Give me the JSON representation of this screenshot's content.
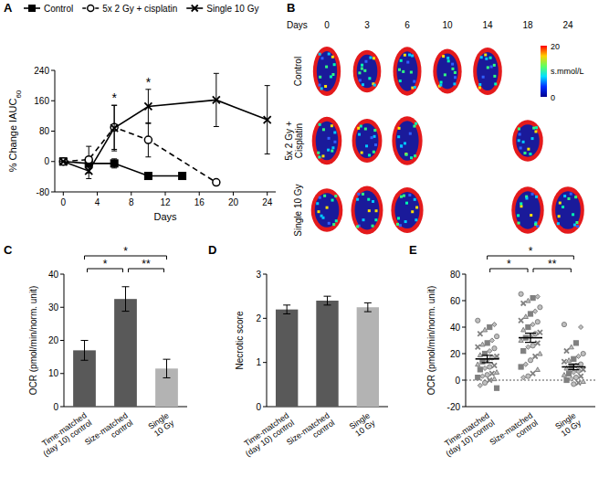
{
  "chart_data": [
    {
      "panel": "A",
      "type": "line",
      "x_label": "Days",
      "y_label": "% Change IAUC60",
      "xlim": [
        -1,
        25
      ],
      "xticks": [
        0,
        4,
        8,
        12,
        16,
        20,
        24
      ],
      "ylim": [
        -80,
        240
      ],
      "yticks": [
        -80,
        0,
        80,
        160,
        240
      ],
      "legend": "top",
      "series": [
        {
          "name": "Control",
          "color": "#000000",
          "marker": "square",
          "line_style": "solid",
          "x": [
            0,
            3,
            6,
            10,
            14
          ],
          "values": [
            0,
            -5,
            -5,
            -38,
            -38
          ],
          "errors": [
            0,
            10,
            12,
            6,
            4
          ]
        },
        {
          "name": "5x 2 Gy + cisplatin",
          "color": "#000000",
          "marker": "open_circle",
          "line_style": "dashed",
          "x": [
            0,
            3,
            6,
            10,
            18
          ],
          "values": [
            0,
            5,
            90,
            57,
            -55
          ],
          "errors": [
            0,
            35,
            58,
            45,
            6
          ]
        },
        {
          "name": "Single 10 Gy",
          "color": "#000000",
          "marker": "x",
          "line_style": "solid",
          "x": [
            0,
            3,
            6,
            10,
            18,
            24
          ],
          "values": [
            0,
            -25,
            88,
            145,
            162,
            110
          ],
          "errors": [
            0,
            20,
            60,
            45,
            70,
            90
          ]
        }
      ],
      "annotations": [
        {
          "x": 6,
          "text": "*"
        },
        {
          "x": 10,
          "text": "*"
        }
      ]
    },
    {
      "panel": "B",
      "type": "image_grid",
      "x_label": "Days",
      "columns": [
        0,
        3,
        6,
        10,
        14,
        18,
        24
      ],
      "rows": [
        {
          "name": "Control",
          "days": [
            0,
            3,
            6,
            10,
            14
          ]
        },
        {
          "name": "5x 2 Gy + Cisplatin",
          "days": [
            0,
            3,
            6,
            18
          ]
        },
        {
          "name": "Single 10 Gy",
          "days": [
            0,
            3,
            6,
            18,
            24
          ]
        }
      ],
      "colorbar": {
        "range": [
          0,
          20
        ],
        "ticks": [
          0,
          20
        ],
        "label": "s.mmol/L"
      }
    },
    {
      "panel": "C",
      "type": "bar",
      "y_label": "OCR (pmol/min/norm. unit)",
      "categories": [
        "Time-matched (day 10) control",
        "Size-matched control",
        "Single 10 Gy"
      ],
      "values": [
        17,
        32.5,
        11.5
      ],
      "errors": [
        3,
        3.7,
        2.8
      ],
      "colors": [
        "#595959",
        "#595959",
        "#b3b3b3"
      ],
      "ylim": [
        0,
        40
      ],
      "yticks": [
        0,
        10,
        20,
        30,
        40
      ],
      "annotations": [
        {
          "from": 0,
          "to": 2,
          "text": "*"
        },
        {
          "from": 0,
          "to": 1,
          "text": "*"
        },
        {
          "from": 1,
          "to": 2,
          "text": "**"
        }
      ]
    },
    {
      "panel": "D",
      "type": "bar",
      "y_label": "Necrotic score",
      "categories": [
        "Time-matched (day 10) control",
        "Size-matched control",
        "Single 10 Gy"
      ],
      "values": [
        2.2,
        2.4,
        2.25
      ],
      "errors": [
        0.1,
        0.1,
        0.1
      ],
      "colors": [
        "#595959",
        "#595959",
        "#b3b3b3"
      ],
      "ylim": [
        0,
        3
      ],
      "yticks": [
        0,
        1,
        2,
        3
      ]
    },
    {
      "panel": "E",
      "type": "strip",
      "y_label": "OCR (pmol/min/norm. unit)",
      "categories": [
        "Time-matched (day 10) control",
        "Size-matched control",
        "Single 10 Gy"
      ],
      "points": [
        [
          45,
          42,
          40,
          38,
          35,
          33,
          30,
          28,
          27,
          25,
          24,
          22,
          20,
          19,
          18,
          17,
          15,
          14,
          12,
          11,
          10,
          9,
          8,
          6,
          5,
          4,
          3,
          2,
          1,
          0,
          -2,
          -4,
          -6
        ],
        [
          65,
          63,
          62,
          60,
          58,
          55,
          52,
          50,
          48,
          45,
          44,
          42,
          40,
          38,
          36,
          35,
          33,
          32,
          30,
          28,
          26,
          25,
          22,
          20,
          18,
          15,
          12,
          10,
          8,
          5,
          3,
          2
        ],
        [
          42,
          40,
          28,
          25,
          22,
          20,
          18,
          16,
          15,
          14,
          12,
          11,
          10,
          9,
          8,
          7,
          6,
          5,
          4,
          3,
          2,
          1,
          0,
          -1,
          -2,
          -3
        ]
      ],
      "values": [
        16,
        32,
        10
      ],
      "errors": [
        2.8,
        3.5,
        2.2
      ],
      "color": "#808080",
      "reference_line": 0,
      "ylim": [
        -20,
        80
      ],
      "yticks": [
        -20,
        0,
        20,
        40,
        60,
        80
      ],
      "annotations": [
        {
          "from": 0,
          "to": 2,
          "text": "*"
        },
        {
          "from": 0,
          "to": 1,
          "text": "*"
        },
        {
          "from": 1,
          "to": 2,
          "text": "**"
        }
      ]
    }
  ]
}
